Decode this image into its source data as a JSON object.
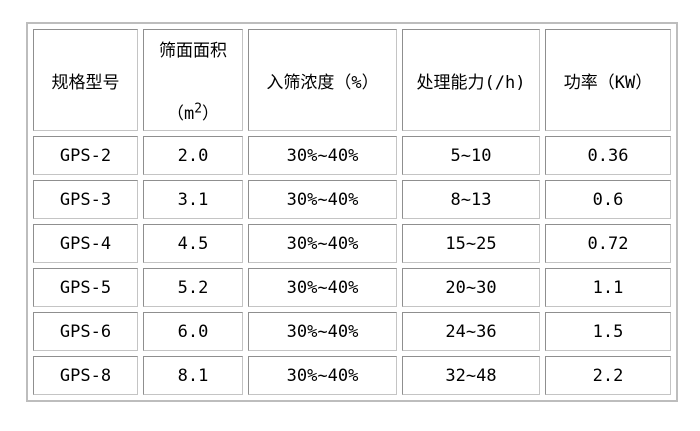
{
  "table_header": {
    "col1": "规格型号",
    "col2_line1": "筛面面积",
    "col2_line2_prefix": "（m",
    "col2_sup": "2",
    "col2_line2_suffix": "）",
    "col3": "入筛浓度（%）",
    "col4": "处理能力(/h)",
    "col5": "功率（KW）"
  },
  "chart_data": {
    "type": "table",
    "title": "",
    "columns": [
      "规格型号",
      "筛面面积（m²）",
      "入筛浓度（%）",
      "处理能力(/h)",
      "功率（KW）"
    ],
    "rows": [
      [
        "GPS-2",
        "2.0",
        "30%~40%",
        "5~10",
        "0.36"
      ],
      [
        "GPS-3",
        "3.1",
        "30%~40%",
        "8~13",
        "0.6"
      ],
      [
        "GPS-4",
        "4.5",
        "30%~40%",
        "15~25",
        "0.72"
      ],
      [
        "GPS-5",
        "5.2",
        "30%~40%",
        "20~30",
        "1.1"
      ],
      [
        "GPS-6",
        "6.0",
        "30%~40%",
        "24~36",
        "1.5"
      ],
      [
        "GPS-8",
        "8.1",
        "30%~40%",
        "32~48",
        "2.2"
      ]
    ],
    "layout": {
      "grid": "bordered-cells",
      "border_color": "#bdbdbd",
      "cell_border_color": "#8f8f8f",
      "background": "#ffffff",
      "text_color": "#000000"
    }
  }
}
